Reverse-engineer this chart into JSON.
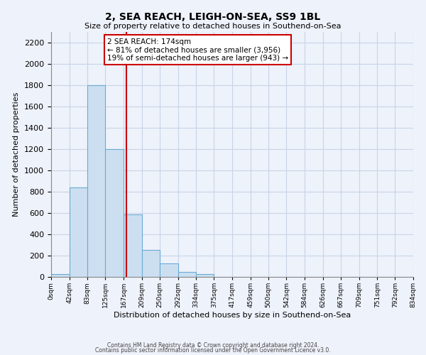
{
  "title": "2, SEA REACH, LEIGH-ON-SEA, SS9 1BL",
  "subtitle": "Size of property relative to detached houses in Southend-on-Sea",
  "xlabel": "Distribution of detached houses by size in Southend-on-Sea",
  "ylabel": "Number of detached properties",
  "bar_edges": [
    0,
    42,
    83,
    125,
    167,
    209,
    250,
    292,
    334,
    375,
    417,
    459,
    500,
    542,
    584,
    626,
    667,
    709,
    751,
    792,
    834
  ],
  "bar_heights": [
    25,
    840,
    1800,
    1200,
    590,
    255,
    125,
    45,
    25,
    0,
    0,
    0,
    0,
    0,
    0,
    0,
    0,
    0,
    0,
    0
  ],
  "bar_color": "#ccdff0",
  "bar_edgecolor": "#6aaad4",
  "vline_x": 174,
  "vline_color": "#cc0000",
  "ylim": [
    0,
    2300
  ],
  "yticks": [
    0,
    200,
    400,
    600,
    800,
    1000,
    1200,
    1400,
    1600,
    1800,
    2000,
    2200
  ],
  "annotation_title": "2 SEA REACH: 174sqm",
  "annotation_line1": "← 81% of detached houses are smaller (3,956)",
  "annotation_line2": "19% of semi-detached houses are larger (943) →",
  "annotation_box_color": "#ffffff",
  "annotation_box_edgecolor": "#cc0000",
  "footer1": "Contains HM Land Registry data © Crown copyright and database right 2024.",
  "footer2": "Contains public sector information licensed under the Open Government Licence v3.0.",
  "tick_labels": [
    "0sqm",
    "42sqm",
    "83sqm",
    "125sqm",
    "167sqm",
    "209sqm",
    "250sqm",
    "292sqm",
    "334sqm",
    "375sqm",
    "417sqm",
    "459sqm",
    "500sqm",
    "542sqm",
    "584sqm",
    "626sqm",
    "667sqm",
    "709sqm",
    "751sqm",
    "792sqm",
    "834sqm"
  ],
  "grid_color": "#c8d4e8",
  "background_color": "#eef2fa"
}
